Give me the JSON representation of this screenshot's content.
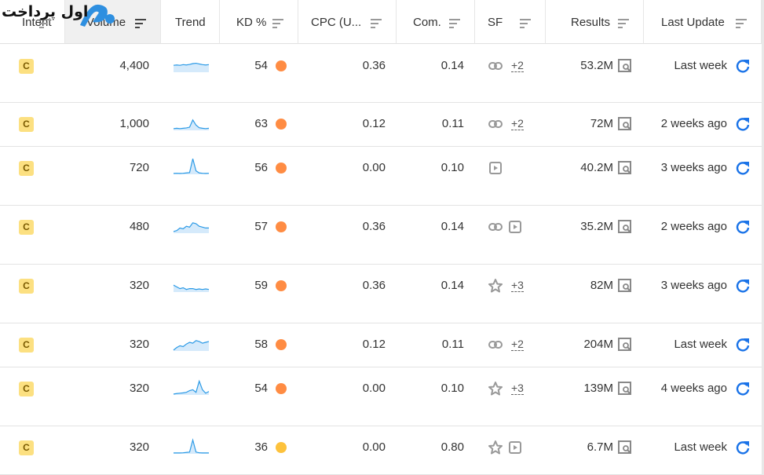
{
  "logo": {
    "text": "اول پرداخت"
  },
  "header": {
    "columns": [
      "Intent",
      "Volume",
      "Trend",
      "KD %",
      "CPC (U...",
      "Com.",
      "SF",
      "Results",
      "Last Update"
    ]
  },
  "rows": [
    {
      "intent": "C",
      "volume": "4,400",
      "trend": [
        40,
        42,
        40,
        44,
        42,
        45,
        50,
        52,
        48,
        44,
        42,
        44
      ],
      "kd": 54,
      "kd_color": "#ff8c43",
      "cpc": "0.36",
      "com": "0.14",
      "sf_icons": [
        "link"
      ],
      "sf_more": "+2",
      "results": "53.2M",
      "last_update": "Last week"
    },
    {
      "intent": "C",
      "volume": "1,000",
      "trend": [
        10,
        12,
        10,
        12,
        14,
        18,
        60,
        30,
        15,
        12,
        10,
        12
      ],
      "kd": 63,
      "kd_color": "#ff8c43",
      "cpc": "0.12",
      "com": "0.11",
      "sf_icons": [
        "link"
      ],
      "sf_more": "+2",
      "results": "72M",
      "last_update": "2 weeks ago"
    },
    {
      "intent": "C",
      "volume": "720",
      "trend": [
        5,
        6,
        5,
        6,
        8,
        10,
        90,
        20,
        8,
        6,
        5,
        6
      ],
      "kd": 56,
      "kd_color": "#ff8c43",
      "cpc": "0.00",
      "com": "0.10",
      "sf_icons": [
        "video"
      ],
      "results": "40.2M",
      "last_update": "3 weeks ago"
    },
    {
      "intent": "C",
      "volume": "480",
      "trend": [
        10,
        15,
        30,
        25,
        40,
        35,
        60,
        55,
        40,
        35,
        30,
        30
      ],
      "kd": 57,
      "kd_color": "#ff8c43",
      "cpc": "0.36",
      "com": "0.14",
      "sf_icons": [
        "link",
        "video"
      ],
      "results": "35.2M",
      "last_update": "2 weeks ago"
    },
    {
      "intent": "C",
      "volume": "320",
      "trend": [
        40,
        30,
        20,
        25,
        15,
        20,
        20,
        15,
        18,
        15,
        18,
        15
      ],
      "kd": 59,
      "kd_color": "#ff8c43",
      "cpc": "0.36",
      "com": "0.14",
      "sf_icons": [
        "star"
      ],
      "sf_more": "+3",
      "results": "82M",
      "last_update": "3 weeks ago"
    },
    {
      "intent": "C",
      "volume": "320",
      "trend": [
        5,
        20,
        30,
        25,
        40,
        50,
        45,
        60,
        55,
        45,
        50,
        55
      ],
      "kd": 58,
      "kd_color": "#ff8c43",
      "cpc": "0.12",
      "com": "0.11",
      "sf_icons": [
        "link"
      ],
      "sf_more": "+2",
      "results": "204M",
      "last_update": "Last week"
    },
    {
      "intent": "C",
      "volume": "320",
      "trend": [
        5,
        8,
        10,
        12,
        15,
        25,
        30,
        15,
        80,
        30,
        10,
        20
      ],
      "kd": 54,
      "kd_color": "#ff8c43",
      "cpc": "0.00",
      "com": "0.10",
      "sf_icons": [
        "star"
      ],
      "sf_more": "+3",
      "results": "139M",
      "last_update": "4 weeks ago"
    },
    {
      "intent": "C",
      "volume": "320",
      "trend": [
        5,
        5,
        5,
        6,
        8,
        10,
        80,
        10,
        6,
        5,
        5,
        5
      ],
      "kd": 36,
      "kd_color": "#fdc23c",
      "cpc": "0.00",
      "com": "0.80",
      "sf_icons": [
        "star",
        "video"
      ],
      "results": "6.7M",
      "last_update": "Last week"
    }
  ]
}
